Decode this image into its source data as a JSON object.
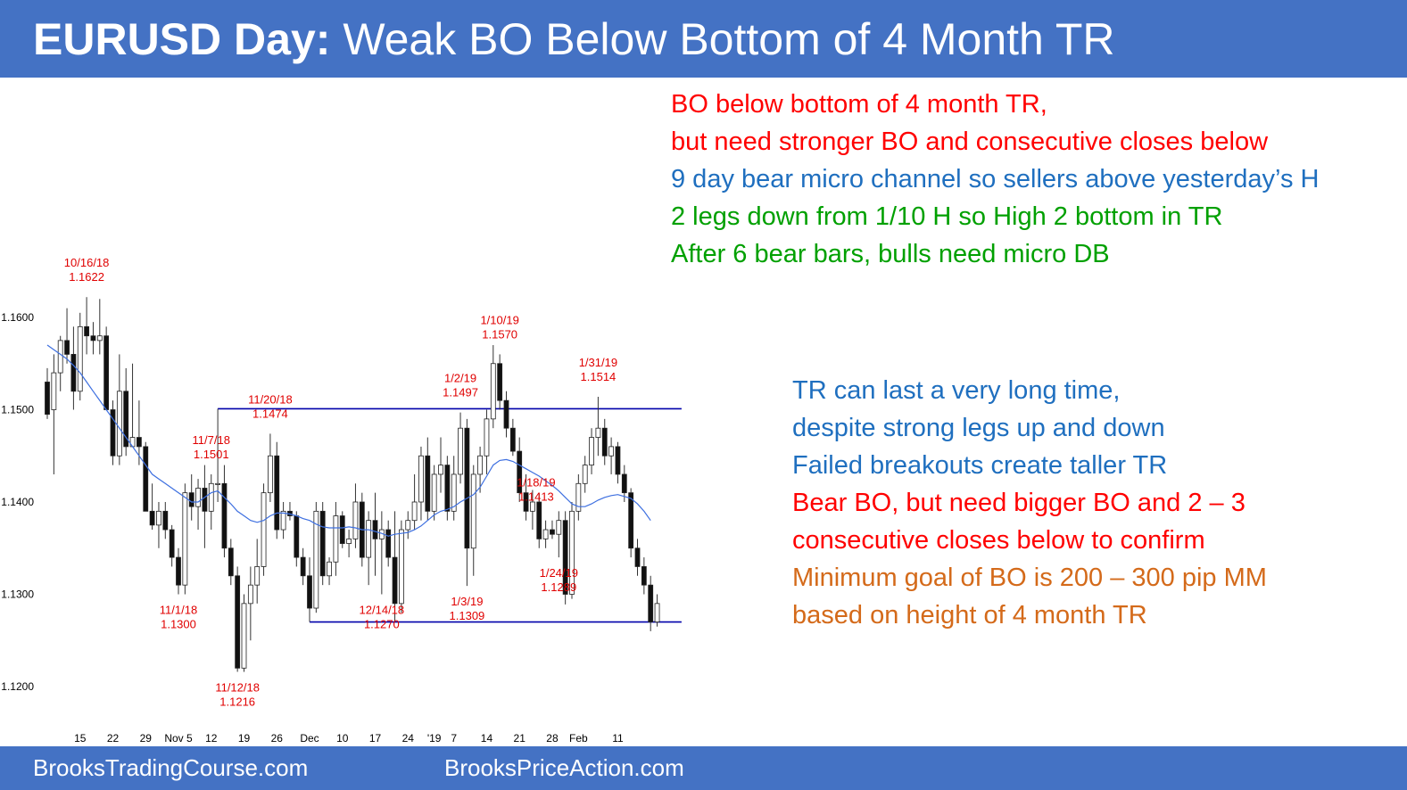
{
  "header": {
    "title_bold": "EURUSD Day:",
    "title_rest": "Weak BO Below Bottom of 4 Month TR"
  },
  "footer": {
    "left": "BrooksTradingCourse.com",
    "center": "BrooksPriceAction.com"
  },
  "colors": {
    "banner": "#4472c4",
    "red": "#ff0000",
    "blue": "#1f6fbf",
    "green": "#00a000",
    "orange": "#d46a1a",
    "ema": "#3d6fe0",
    "range_line": "#0000aa"
  },
  "notes_top": [
    {
      "text": "BO below bottom of 4 month TR,",
      "color": "red"
    },
    {
      "text": "but need stronger BO and consecutive closes below",
      "color": "red"
    },
    {
      "text": "9 day bear micro channel so sellers above yesterday’s H",
      "color": "blue"
    },
    {
      "text": "2 legs down from 1/10 H so High 2 bottom in TR",
      "color": "green"
    },
    {
      "text": "After 6 bear bars, bulls need micro DB",
      "color": "green"
    }
  ],
  "notes_right": [
    {
      "text": "TR can last a very long time,",
      "color": "blue"
    },
    {
      "text": "despite strong legs up and down",
      "color": "blue"
    },
    {
      "text": "Failed breakouts create taller TR",
      "color": "blue"
    },
    {
      "text": "Bear BO, but need bigger BO and 2 – 3",
      "color": "red"
    },
    {
      "text": "consecutive closes below to confirm",
      "color": "red"
    },
    {
      "text": "Minimum goal of BO is 200 – 300 pip MM",
      "color": "orange"
    },
    {
      "text": "based on height of 4 month TR",
      "color": "orange"
    }
  ],
  "chart_data": {
    "type": "candlestick",
    "instrument": "EURUSD",
    "timeframe": "Day",
    "y_ticks": [
      "1.1200",
      "1.1300",
      "1.1400",
      "1.1500",
      "1.1600"
    ],
    "ylim": [
      1.117,
      1.166
    ],
    "x_ticks": [
      {
        "label": "15",
        "bar": 5
      },
      {
        "label": "22",
        "bar": 10
      },
      {
        "label": "29",
        "bar": 15
      },
      {
        "label": "Nov 5",
        "bar": 20
      },
      {
        "label": "12",
        "bar": 25
      },
      {
        "label": "19",
        "bar": 30
      },
      {
        "label": "26",
        "bar": 35
      },
      {
        "label": "Dec",
        "bar": 40
      },
      {
        "label": "10",
        "bar": 45
      },
      {
        "label": "17",
        "bar": 50
      },
      {
        "label": "24",
        "bar": 55
      },
      {
        "label": "'19",
        "bar": 59
      },
      {
        "label": "7",
        "bar": 62
      },
      {
        "label": "14",
        "bar": 67
      },
      {
        "label": "21",
        "bar": 72
      },
      {
        "label": "28",
        "bar": 77
      },
      {
        "label": "Feb",
        "bar": 81
      },
      {
        "label": "11",
        "bar": 87
      }
    ],
    "candles": [
      [
        1.153,
        1.1545,
        1.149,
        1.1495
      ],
      [
        1.15,
        1.156,
        1.143,
        1.154
      ],
      [
        1.154,
        1.158,
        1.152,
        1.1575
      ],
      [
        1.1575,
        1.161,
        1.155,
        1.156
      ],
      [
        1.156,
        1.159,
        1.15,
        1.152
      ],
      [
        1.152,
        1.1605,
        1.151,
        1.159
      ],
      [
        1.159,
        1.1622,
        1.156,
        1.158
      ],
      [
        1.158,
        1.1595,
        1.156,
        1.1575
      ],
      [
        1.1575,
        1.162,
        1.156,
        1.158
      ],
      [
        1.158,
        1.159,
        1.15,
        1.15
      ],
      [
        1.15,
        1.151,
        1.144,
        1.145
      ],
      [
        1.145,
        1.156,
        1.144,
        1.152
      ],
      [
        1.152,
        1.1545,
        1.145,
        1.146
      ],
      [
        1.146,
        1.155,
        1.146,
        1.147
      ],
      [
        1.147,
        1.151,
        1.144,
        1.146
      ],
      [
        1.146,
        1.1465,
        1.139,
        1.139
      ],
      [
        1.139,
        1.142,
        1.137,
        1.1375
      ],
      [
        1.1375,
        1.14,
        1.135,
        1.139
      ],
      [
        1.139,
        1.14,
        1.136,
        1.137
      ],
      [
        1.137,
        1.1375,
        1.133,
        1.134
      ],
      [
        1.134,
        1.135,
        1.13,
        1.131
      ],
      [
        1.131,
        1.142,
        1.13,
        1.141
      ],
      [
        1.141,
        1.143,
        1.138,
        1.1395
      ],
      [
        1.1395,
        1.1425,
        1.137,
        1.1415
      ],
      [
        1.1415,
        1.144,
        1.135,
        1.139
      ],
      [
        1.139,
        1.143,
        1.137,
        1.142
      ],
      [
        1.142,
        1.1501,
        1.14,
        1.142
      ],
      [
        1.142,
        1.144,
        1.134,
        1.135
      ],
      [
        1.135,
        1.136,
        1.131,
        1.132
      ],
      [
        1.132,
        1.133,
        1.1216,
        1.122
      ],
      [
        1.122,
        1.13,
        1.1216,
        1.129
      ],
      [
        1.129,
        1.133,
        1.125,
        1.131
      ],
      [
        1.131,
        1.136,
        1.129,
        1.133
      ],
      [
        1.133,
        1.142,
        1.132,
        1.141
      ],
      [
        1.141,
        1.1474,
        1.14,
        1.145
      ],
      [
        1.145,
        1.1465,
        1.136,
        1.137
      ],
      [
        1.137,
        1.14,
        1.136,
        1.139
      ],
      [
        1.139,
        1.14,
        1.138,
        1.1385
      ],
      [
        1.1385,
        1.139,
        1.133,
        1.134
      ],
      [
        1.134,
        1.135,
        1.131,
        1.132
      ],
      [
        1.132,
        1.134,
        1.127,
        1.1285
      ],
      [
        1.1285,
        1.14,
        1.128,
        1.139
      ],
      [
        1.139,
        1.14,
        1.131,
        1.132
      ],
      [
        1.132,
        1.134,
        1.131,
        1.1335
      ],
      [
        1.1335,
        1.14,
        1.132,
        1.1385
      ],
      [
        1.1385,
        1.139,
        1.135,
        1.1355
      ],
      [
        1.1355,
        1.137,
        1.134,
        1.136
      ],
      [
        1.136,
        1.142,
        1.135,
        1.14
      ],
      [
        1.14,
        1.141,
        1.133,
        1.134
      ],
      [
        1.134,
        1.139,
        1.131,
        1.138
      ],
      [
        1.138,
        1.141,
        1.132,
        1.136
      ],
      [
        1.136,
        1.139,
        1.13,
        1.137
      ],
      [
        1.137,
        1.138,
        1.133,
        1.134
      ],
      [
        1.134,
        1.139,
        1.127,
        1.129
      ],
      [
        1.129,
        1.138,
        1.128,
        1.137
      ],
      [
        1.137,
        1.139,
        1.136,
        1.138
      ],
      [
        1.138,
        1.143,
        1.137,
        1.14
      ],
      [
        1.14,
        1.146,
        1.138,
        1.145
      ],
      [
        1.145,
        1.147,
        1.138,
        1.139
      ],
      [
        1.139,
        1.144,
        1.138,
        1.143
      ],
      [
        1.143,
        1.147,
        1.141,
        1.144
      ],
      [
        1.144,
        1.145,
        1.138,
        1.139
      ],
      [
        1.139,
        1.145,
        1.138,
        1.143
      ],
      [
        1.143,
        1.1497,
        1.142,
        1.148
      ],
      [
        1.148,
        1.149,
        1.1309,
        1.135
      ],
      [
        1.135,
        1.144,
        1.132,
        1.143
      ],
      [
        1.143,
        1.146,
        1.141,
        1.145
      ],
      [
        1.145,
        1.15,
        1.143,
        1.149
      ],
      [
        1.149,
        1.157,
        1.148,
        1.155
      ],
      [
        1.155,
        1.156,
        1.15,
        1.151
      ],
      [
        1.151,
        1.152,
        1.147,
        1.148
      ],
      [
        1.148,
        1.149,
        1.145,
        1.1455
      ],
      [
        1.1455,
        1.147,
        1.14,
        1.141
      ],
      [
        1.141,
        1.143,
        1.138,
        1.139
      ],
      [
        1.139,
        1.1413,
        1.137,
        1.14
      ],
      [
        1.14,
        1.141,
        1.135,
        1.136
      ],
      [
        1.136,
        1.138,
        1.135,
        1.137
      ],
      [
        1.137,
        1.138,
        1.136,
        1.1365
      ],
      [
        1.1365,
        1.139,
        1.134,
        1.138
      ],
      [
        1.138,
        1.139,
        1.1289,
        1.13
      ],
      [
        1.13,
        1.14,
        1.1295,
        1.139
      ],
      [
        1.139,
        1.143,
        1.138,
        1.142
      ],
      [
        1.142,
        1.145,
        1.141,
        1.144
      ],
      [
        1.144,
        1.148,
        1.143,
        1.147
      ],
      [
        1.147,
        1.1514,
        1.145,
        1.148
      ],
      [
        1.148,
        1.149,
        1.144,
        1.145
      ],
      [
        1.145,
        1.147,
        1.143,
        1.146
      ],
      [
        1.146,
        1.1465,
        1.142,
        1.143
      ],
      [
        1.143,
        1.144,
        1.14,
        1.141
      ],
      [
        1.141,
        1.1415,
        1.134,
        1.135
      ],
      [
        1.135,
        1.136,
        1.132,
        1.133
      ],
      [
        1.133,
        1.134,
        1.13,
        1.131
      ],
      [
        1.131,
        1.132,
        1.126,
        1.127
      ],
      [
        1.127,
        1.13,
        1.1265,
        1.129
      ]
    ],
    "ema": [
      1.157,
      1.1565,
      1.156,
      1.1555,
      1.1548,
      1.154,
      1.153,
      1.152,
      1.151,
      1.15,
      1.149,
      1.148,
      1.147,
      1.146,
      1.145,
      1.144,
      1.143,
      1.1425,
      1.142,
      1.1415,
      1.141,
      1.1405,
      1.14,
      1.14,
      1.1405,
      1.141,
      1.1412,
      1.1405,
      1.1398,
      1.139,
      1.1385,
      1.138,
      1.1378,
      1.138,
      1.1385,
      1.1388,
      1.1388,
      1.1387,
      1.1385,
      1.1382,
      1.138,
      1.1376,
      1.1373,
      1.1372,
      1.1372,
      1.1372,
      1.1373,
      1.1372,
      1.137,
      1.137,
      1.1368,
      1.1366,
      1.1363,
      1.1365,
      1.1366,
      1.1367,
      1.137,
      1.1374,
      1.138,
      1.1386,
      1.139,
      1.1392,
      1.1395,
      1.14,
      1.1404,
      1.1408,
      1.1416,
      1.1428,
      1.144,
      1.1445,
      1.1446,
      1.1444,
      1.144,
      1.1436,
      1.1432,
      1.1428,
      1.1423,
      1.1418,
      1.1412,
      1.1405,
      1.1398,
      1.1395,
      1.1395,
      1.1398,
      1.1402,
      1.1405,
      1.1407,
      1.1408,
      1.1406,
      1.1404,
      1.1398,
      1.139,
      1.138
    ],
    "range_top": {
      "price": 1.1501,
      "from_bar": 26,
      "to_bar": 94
    },
    "range_bottom": {
      "price": 1.127,
      "from_bar": 40,
      "to_bar": 94
    },
    "annotations": [
      {
        "date": "10/16/18",
        "price": "1.1622",
        "bar": 6,
        "pos": "above"
      },
      {
        "date": "11/1/18",
        "price": "1.1300",
        "bar": 20,
        "pos": "below"
      },
      {
        "date": "11/7/18",
        "price": "1.1501",
        "bar": 25,
        "pos": "above"
      },
      {
        "date": "11/12/18",
        "price": "1.1216",
        "bar": 29,
        "pos": "below"
      },
      {
        "date": "11/20/18",
        "price": "1.1474",
        "bar": 34,
        "pos": "above"
      },
      {
        "date": "12/14/18",
        "price": "1.1270",
        "bar": 51,
        "pos": "below"
      },
      {
        "date": "1/2/19",
        "price": "1.1497",
        "bar": 63,
        "pos": "above"
      },
      {
        "date": "1/3/19",
        "price": "1.1309",
        "bar": 64,
        "pos": "below"
      },
      {
        "date": "1/10/19",
        "price": "1.1570",
        "bar": 69,
        "pos": "above"
      },
      {
        "date": "1/18/19",
        "price": "1.1413",
        "bar": 74,
        "pos": "right"
      },
      {
        "date": "1/24/19",
        "price": "1.1289",
        "bar": 78,
        "pos": "below"
      },
      {
        "date": "1/31/19",
        "price": "1.1514",
        "bar": 84,
        "pos": "above"
      }
    ]
  }
}
